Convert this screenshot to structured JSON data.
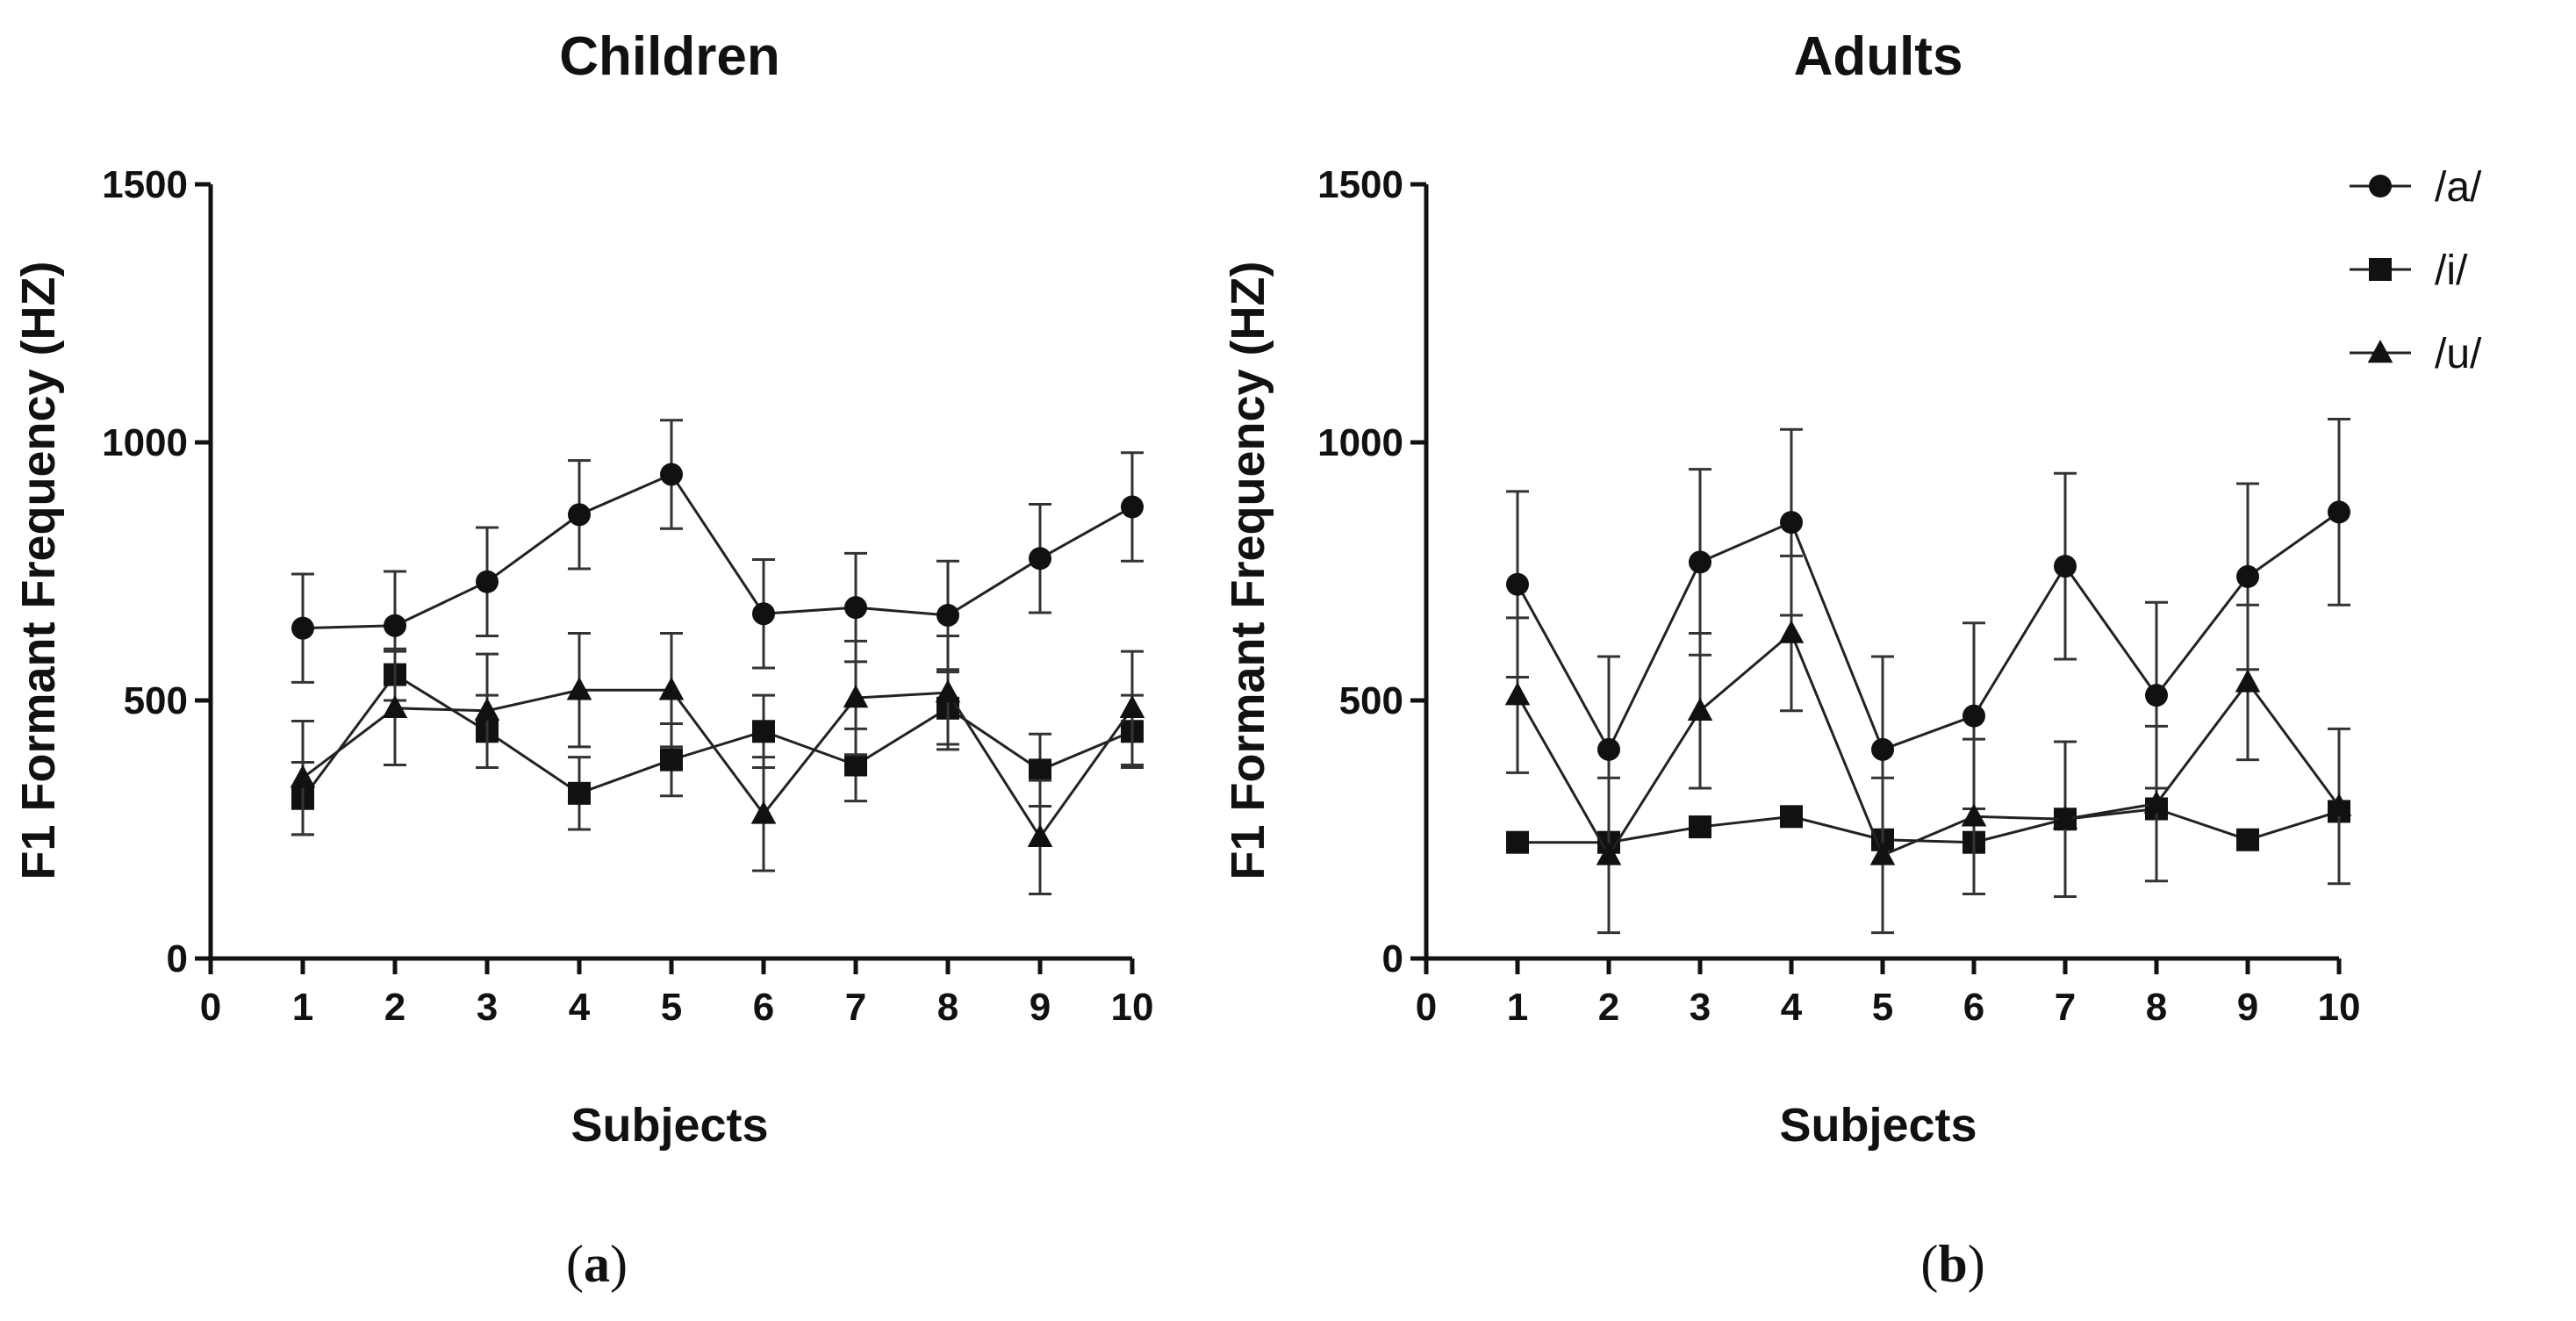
{
  "chart_data": [
    {
      "type": "line",
      "title": "Children",
      "xlabel": "Subjects",
      "ylabel": "F1 Formant Frequency (HZ)",
      "xlim": [
        0,
        10
      ],
      "ylim": [
        0,
        1500
      ],
      "xticks": [
        "0",
        "1",
        "2",
        "3",
        "4",
        "5",
        "6",
        "7",
        "8",
        "9",
        "10"
      ],
      "yticks": [
        "0",
        "500",
        "1000",
        "1500"
      ],
      "x": [
        1,
        2,
        3,
        4,
        5,
        6,
        7,
        8,
        9,
        10
      ],
      "grid": false,
      "caption": "a",
      "series": [
        {
          "name": "/a/",
          "marker": "circle",
          "values": [
            640,
            645,
            730,
            860,
            938,
            668,
            680,
            665,
            775,
            875
          ],
          "error": [
            105,
            105,
            105,
            105,
            105,
            105,
            105,
            105,
            105,
            105
          ]
        },
        {
          "name": "/i/",
          "marker": "square",
          "values": [
            310,
            550,
            440,
            320,
            385,
            440,
            375,
            485,
            365,
            440
          ],
          "error": [
            70,
            50,
            70,
            70,
            70,
            70,
            70,
            70,
            70,
            70
          ]
        },
        {
          "name": "/u/",
          "marker": "triangle",
          "values": [
            350,
            485,
            480,
            520,
            520,
            280,
            505,
            515,
            235,
            485
          ],
          "error": [
            110,
            110,
            110,
            110,
            110,
            110,
            110,
            110,
            110,
            110
          ]
        }
      ]
    },
    {
      "type": "line",
      "title": "Adults",
      "xlabel": "Subjects",
      "ylabel": "F1 Formant Frequency (HZ)",
      "xlim": [
        0,
        10
      ],
      "ylim": [
        0,
        1500
      ],
      "xticks": [
        "0",
        "1",
        "2",
        "3",
        "4",
        "5",
        "6",
        "7",
        "8",
        "9",
        "10"
      ],
      "yticks": [
        "0",
        "500",
        "1000",
        "1500"
      ],
      "x": [
        1,
        2,
        3,
        4,
        5,
        6,
        7,
        8,
        9,
        10
      ],
      "grid": false,
      "caption": "b",
      "series": [
        {
          "name": "/a/",
          "marker": "circle",
          "values": [
            725,
            405,
            768,
            845,
            405,
            470,
            760,
            510,
            740,
            865
          ],
          "error": [
            180,
            180,
            180,
            180,
            180,
            180,
            180,
            180,
            180,
            180
          ]
        },
        {
          "name": "/i/",
          "marker": "square",
          "values": [
            225,
            225,
            255,
            275,
            230,
            225,
            270,
            290,
            230,
            285
          ],
          "error": [
            0,
            0,
            0,
            0,
            0,
            0,
            0,
            0,
            0,
            0
          ]
        },
        {
          "name": "/u/",
          "marker": "triangle",
          "values": [
            510,
            200,
            480,
            630,
            200,
            275,
            270,
            300,
            535,
            295
          ],
          "error": [
            150,
            150,
            150,
            150,
            150,
            150,
            150,
            150,
            150,
            150
          ]
        }
      ]
    }
  ],
  "legend": {
    "placement": "right",
    "entries": [
      {
        "label": "/a/",
        "marker": "circle"
      },
      {
        "label": "/i/",
        "marker": "square"
      },
      {
        "label": "/u/",
        "marker": "triangle"
      }
    ]
  }
}
